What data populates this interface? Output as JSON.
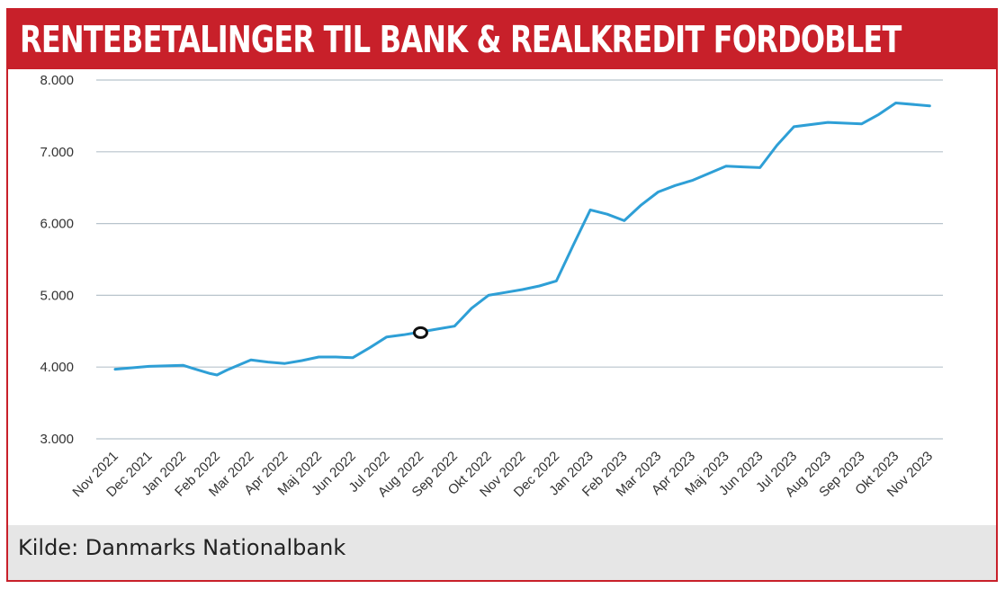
{
  "title": "RENTEBETALINGER TIL BANK & REALKREDIT FORDOBLET",
  "source": "Kilde: Danmarks Nationalbank",
  "colors": {
    "accent": "#c8202a",
    "line": "#2e9fd6",
    "grid": "#b8c4cc",
    "source_bar": "#e6e6e6"
  },
  "chart_data": {
    "type": "line",
    "title": "",
    "xlabel": "",
    "ylabel": "",
    "ylim": [
      3000,
      8000
    ],
    "yticks": [
      3000,
      4000,
      5000,
      6000,
      7000,
      8000
    ],
    "ytick_labels": [
      "3.000",
      "4.000",
      "5.000",
      "6.000",
      "7.000",
      "8.000"
    ],
    "grid": true,
    "legend": "none",
    "categories": [
      "Nov 2021",
      "Dec 2021",
      "Jan 2022",
      "Feb 2022",
      "Mar 2022",
      "Apr 2022",
      "Maj 2022",
      "Jun 2022",
      "Jul 2022",
      "Aug 2022",
      "Sep 2022",
      "Okt 2022",
      "Nov 2022",
      "Dec 2022",
      "Jan 2023",
      "Feb 2023",
      "Mar 2023",
      "Apr 2023",
      "Maj 2023",
      "Jun 2023",
      "Jul 2023",
      "Aug 2023",
      "Sep 2023",
      "Okt 2023",
      "Nov 2023"
    ],
    "series": [
      {
        "x": [
          0,
          0.5,
          1,
          2,
          2.3,
          2.8,
          3,
          3.3,
          4,
          4.5,
          5,
          5.5,
          6,
          6.5,
          7,
          7.5,
          8,
          8.5,
          9,
          9.5,
          10,
          10.5,
          11,
          11.5,
          12,
          12.5,
          13,
          13.5,
          14,
          14.5,
          15,
          15.5,
          16,
          16.5,
          17,
          17.5,
          18,
          18.5,
          19,
          19.5,
          20,
          21,
          22,
          22.5,
          23,
          24
        ],
        "values": [
          3970,
          3990,
          4010,
          4025,
          3980,
          3910,
          3890,
          3960,
          4100,
          4070,
          4050,
          4090,
          4140,
          4140,
          4130,
          4270,
          4420,
          4450,
          4490,
          4530,
          4570,
          4820,
          5000,
          5040,
          5080,
          5130,
          5200,
          5700,
          6190,
          6130,
          6040,
          6260,
          6440,
          6530,
          6600,
          6700,
          6800,
          6790,
          6780,
          7090,
          7350,
          7410,
          7390,
          7520,
          7680,
          7640
        ]
      }
    ],
    "annotations": [
      {
        "type": "marker",
        "x": 9,
        "y": 4480
      }
    ]
  }
}
